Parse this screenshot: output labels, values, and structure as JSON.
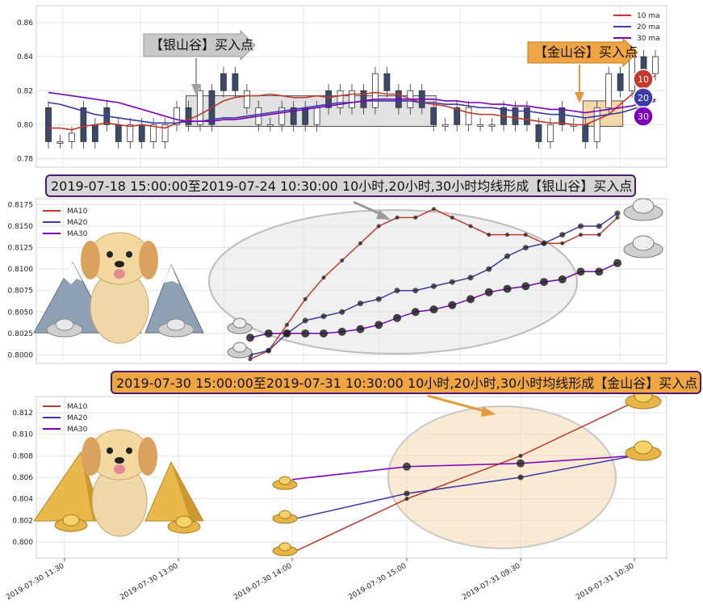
{
  "colors": {
    "ma10": "#c0392b",
    "ma20": "#3a3aa8",
    "ma30": "#7b00b8",
    "candle_down": "#3b4a6b",
    "silver_box": "#c9c9c9",
    "gold_box": "#f2c48a",
    "gold_arrow": "#f0a545",
    "silver_arrow": "#bdbdbd",
    "banner_silver": "#d6d6d6",
    "banner_gold": "#f0a545",
    "banner_border": "#4a1a6e"
  },
  "panel1": {
    "annotations": {
      "silver": "【银山谷】买入点",
      "gold": "【金山谷】买入点"
    },
    "legend": [
      "10 ma",
      "20 ma",
      "30 ma"
    ],
    "badges": [
      "10",
      "20",
      "30"
    ],
    "yticks": [
      "0.86",
      "0.84",
      "0.82",
      "0.80",
      "0.78"
    ]
  },
  "panel2": {
    "banner": "2019-07-18 15:00:00至2019-07-24 10:30:00 10小时,20小时,30小时均线形成【银山谷】买入点",
    "legend": [
      "MA10",
      "MA20",
      "MA30"
    ],
    "yticks": [
      "0.8175",
      "0.8150",
      "0.8125",
      "0.8100",
      "0.8075",
      "0.8050",
      "0.8025",
      "0.8000"
    ]
  },
  "panel3": {
    "banner": "2019-07-30 15:00:00至2019-07-31 10:30:00 10小时,20小时,30小时均线形成【金山谷】买入点",
    "legend": [
      "MA10",
      "MA20",
      "MA30"
    ],
    "yticks": [
      "0.812",
      "0.810",
      "0.808",
      "0.806",
      "0.804",
      "0.802",
      "0.800"
    ]
  },
  "xticks": [
    "2019-07-30 11:30",
    "2019-07-30 13:00",
    "2019-07-30 14:00",
    "2019-07-30 15:00",
    "2019-07-31 09:30",
    "2019-07-31 10:30"
  ],
  "chart_data": [
    {
      "type": "line",
      "title": "",
      "ylim": [
        0.775,
        0.87
      ],
      "series": [
        {
          "name": "10 ma",
          "values": [
            0.798,
            0.798,
            0.797,
            0.799,
            0.8,
            0.801,
            0.8,
            0.799,
            0.8,
            0.799,
            0.798,
            0.801,
            0.803,
            0.806,
            0.81,
            0.814,
            0.816,
            0.817,
            0.817,
            0.818,
            0.817,
            0.816,
            0.816,
            0.817,
            0.816,
            0.817,
            0.818,
            0.818,
            0.819,
            0.818,
            0.818,
            0.815,
            0.813,
            0.812,
            0.811,
            0.809,
            0.807,
            0.806,
            0.806,
            0.805,
            0.804,
            0.803,
            0.802,
            0.801,
            0.801,
            0.8,
            0.8,
            0.803,
            0.806,
            0.812,
            0.818,
            0.823,
            0.829
          ]
        },
        {
          "name": "20 ma",
          "values": [
            0.813,
            0.812,
            0.81,
            0.808,
            0.806,
            0.805,
            0.804,
            0.803,
            0.802,
            0.801,
            0.801,
            0.801,
            0.802,
            0.802,
            0.803,
            0.804,
            0.804,
            0.805,
            0.806,
            0.807,
            0.808,
            0.809,
            0.81,
            0.811,
            0.812,
            0.813,
            0.813,
            0.814,
            0.814,
            0.814,
            0.814,
            0.814,
            0.813,
            0.813,
            0.812,
            0.812,
            0.811,
            0.81,
            0.81,
            0.809,
            0.808,
            0.808,
            0.807,
            0.806,
            0.806,
            0.805,
            0.804,
            0.805,
            0.806,
            0.807,
            0.809,
            0.811,
            0.814
          ]
        },
        {
          "name": "30 ma",
          "values": [
            0.819,
            0.818,
            0.817,
            0.816,
            0.815,
            0.814,
            0.813,
            0.811,
            0.809,
            0.807,
            0.805,
            0.803,
            0.802,
            0.802,
            0.802,
            0.803,
            0.803,
            0.804,
            0.805,
            0.806,
            0.807,
            0.808,
            0.809,
            0.81,
            0.811,
            0.812,
            0.813,
            0.814,
            0.815,
            0.815,
            0.815,
            0.815,
            0.815,
            0.815,
            0.814,
            0.814,
            0.813,
            0.813,
            0.812,
            0.812,
            0.811,
            0.811,
            0.81,
            0.809,
            0.809,
            0.808,
            0.807,
            0.808,
            0.809,
            0.81,
            0.811,
            0.813,
            0.815
          ]
        }
      ],
      "candles": [
        {
          "o": 0.81,
          "c": 0.79
        },
        {
          "o": 0.79,
          "c": 0.79
        },
        {
          "o": 0.79,
          "c": 0.795
        },
        {
          "o": 0.81,
          "c": 0.79
        },
        {
          "o": 0.8,
          "c": 0.79
        },
        {
          "o": 0.81,
          "c": 0.8
        },
        {
          "o": 0.8,
          "c": 0.79
        },
        {
          "o": 0.79,
          "c": 0.8
        },
        {
          "o": 0.8,
          "c": 0.79
        },
        {
          "o": 0.79,
          "c": 0.8
        },
        {
          "o": 0.79,
          "c": 0.8
        },
        {
          "o": 0.8,
          "c": 0.81
        },
        {
          "o": 0.81,
          "c": 0.8
        },
        {
          "o": 0.8,
          "c": 0.82
        },
        {
          "o": 0.82,
          "c": 0.8
        },
        {
          "o": 0.83,
          "c": 0.82
        },
        {
          "o": 0.83,
          "c": 0.82
        },
        {
          "o": 0.81,
          "c": 0.82
        },
        {
          "o": 0.8,
          "c": 0.81
        },
        {
          "o": 0.8,
          "c": 0.8
        },
        {
          "o": 0.8,
          "c": 0.81
        },
        {
          "o": 0.81,
          "c": 0.8
        },
        {
          "o": 0.81,
          "c": 0.8
        },
        {
          "o": 0.8,
          "c": 0.81
        },
        {
          "o": 0.82,
          "c": 0.81
        },
        {
          "o": 0.81,
          "c": 0.82
        },
        {
          "o": 0.81,
          "c": 0.82
        },
        {
          "o": 0.82,
          "c": 0.81
        },
        {
          "o": 0.81,
          "c": 0.83
        },
        {
          "o": 0.83,
          "c": 0.82
        },
        {
          "o": 0.82,
          "c": 0.81
        },
        {
          "o": 0.81,
          "c": 0.82
        },
        {
          "o": 0.82,
          "c": 0.81
        },
        {
          "o": 0.81,
          "c": 0.8
        },
        {
          "o": 0.8,
          "c": 0.8
        },
        {
          "o": 0.81,
          "c": 0.8
        },
        {
          "o": 0.8,
          "c": 0.81
        },
        {
          "o": 0.8,
          "c": 0.8
        },
        {
          "o": 0.8,
          "c": 0.8
        },
        {
          "o": 0.81,
          "c": 0.8
        },
        {
          "o": 0.81,
          "c": 0.8
        },
        {
          "o": 0.81,
          "c": 0.8
        },
        {
          "o": 0.8,
          "c": 0.79
        },
        {
          "o": 0.79,
          "c": 0.8
        },
        {
          "o": 0.81,
          "c": 0.8
        },
        {
          "o": 0.8,
          "c": 0.8
        },
        {
          "o": 0.8,
          "c": 0.79
        },
        {
          "o": 0.79,
          "c": 0.81
        },
        {
          "o": 0.81,
          "c": 0.83
        },
        {
          "o": 0.83,
          "c": 0.82
        },
        {
          "o": 0.82,
          "c": 0.84
        },
        {
          "o": 0.84,
          "c": 0.83
        },
        {
          "o": 0.83,
          "c": 0.84
        }
      ]
    },
    {
      "type": "line",
      "title": "2019-07-18 15:00:00至2019-07-24 10:30:00 10小时,20小时,30小时均线形成【银山谷】买入点",
      "ylim": [
        0.799,
        0.8182
      ],
      "series": [
        {
          "name": "MA10",
          "values": [
            0.7995,
            0.8005,
            0.8035,
            0.8065,
            0.809,
            0.811,
            0.813,
            0.815,
            0.816,
            0.816,
            0.817,
            0.816,
            0.815,
            0.814,
            0.814,
            0.814,
            0.813,
            0.813,
            0.814,
            0.814,
            0.816
          ]
        },
        {
          "name": "MA20",
          "values": [
            0.8,
            0.8005,
            0.8025,
            0.804,
            0.8045,
            0.805,
            0.806,
            0.8065,
            0.8075,
            0.8075,
            0.808,
            0.8085,
            0.809,
            0.81,
            0.8115,
            0.8125,
            0.813,
            0.814,
            0.815,
            0.815,
            0.8165
          ]
        },
        {
          "name": "MA30",
          "values": [
            0.802,
            0.8025,
            0.8025,
            0.8025,
            0.8025,
            0.8027,
            0.803,
            0.8035,
            0.8043,
            0.805,
            0.8053,
            0.8058,
            0.8065,
            0.8073,
            0.8077,
            0.808,
            0.8085,
            0.8088,
            0.8097,
            0.8097,
            0.8107
          ]
        }
      ]
    },
    {
      "type": "line",
      "title": "2019-07-30 15:00:00至2019-07-31 10:30:00 10小时,20小时,30小时均线形成【金山谷】买入点",
      "x": [
        "2019-07-30 14:00",
        "2019-07-30 15:00",
        "2019-07-31 09:30",
        "2019-07-31 10:30"
      ],
      "ylim": [
        0.7985,
        0.8135
      ],
      "series": [
        {
          "name": "MA10",
          "values": [
            0.799,
            0.804,
            0.808,
            0.813
          ]
        },
        {
          "name": "MA20",
          "values": [
            0.8021,
            0.8045,
            0.806,
            0.808
          ]
        },
        {
          "name": "MA30",
          "values": [
            0.8058,
            0.807,
            0.8073,
            0.808
          ]
        }
      ]
    }
  ]
}
